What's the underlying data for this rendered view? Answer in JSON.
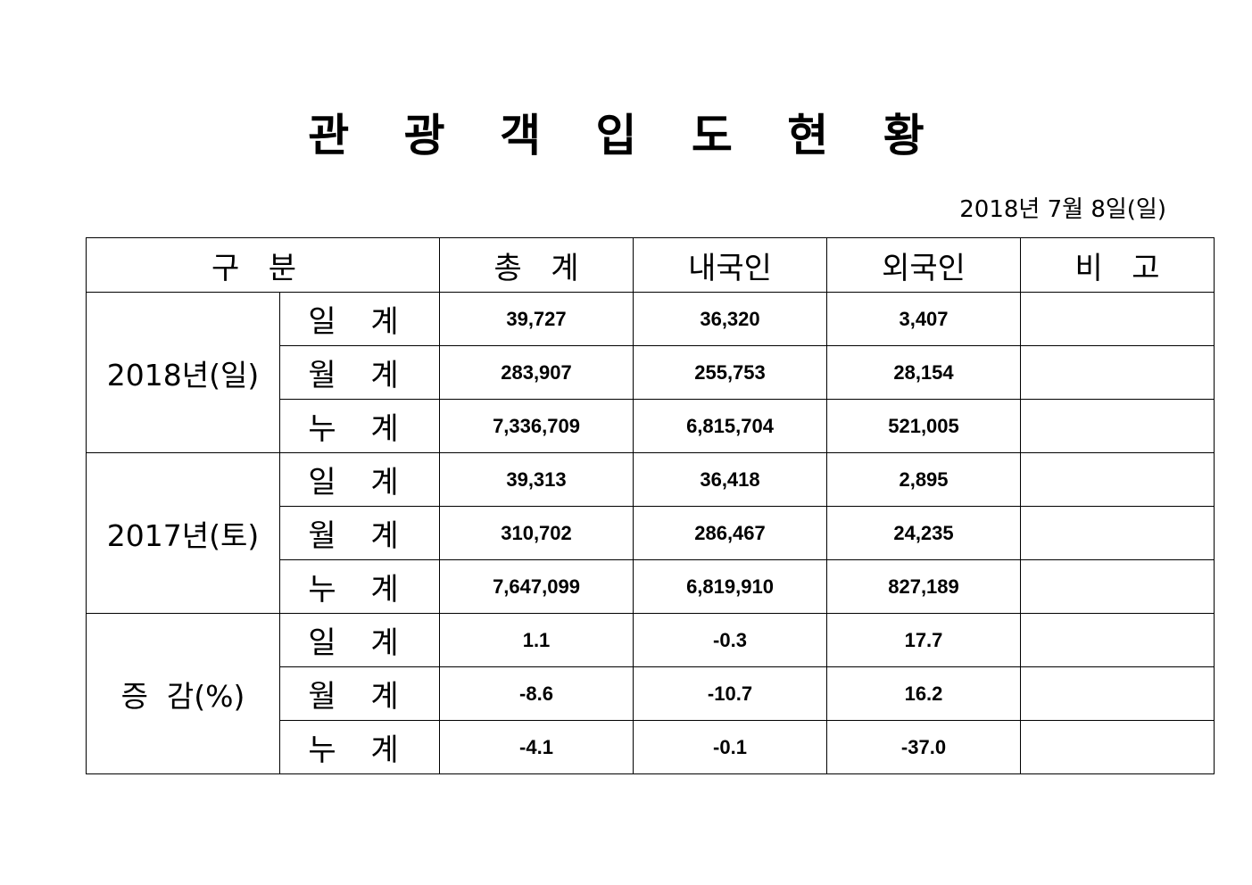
{
  "title": "관 광 객 입 도 현 황",
  "date": "2018년  7월  8일(일)",
  "headers": [
    "구   분",
    "총   계",
    "내국인",
    "외국인",
    "비   고"
  ],
  "groups": [
    {
      "label": "2018년(일)",
      "rows": [
        {
          "label": "일 계",
          "total": "39,727",
          "domestic": "36,320",
          "foreign": "3,407",
          "note": ""
        },
        {
          "label": "월 계",
          "total": "283,907",
          "domestic": "255,753",
          "foreign": "28,154",
          "note": ""
        },
        {
          "label": "누 계",
          "total": "7,336,709",
          "domestic": "6,815,704",
          "foreign": "521,005",
          "note": ""
        }
      ]
    },
    {
      "label": "2017년(토)",
      "rows": [
        {
          "label": "일 계",
          "total": "39,313",
          "domestic": "36,418",
          "foreign": "2,895",
          "note": ""
        },
        {
          "label": "월 계",
          "total": "310,702",
          "domestic": "286,467",
          "foreign": "24,235",
          "note": ""
        },
        {
          "label": "누 계",
          "total": "7,647,099",
          "domestic": "6,819,910",
          "foreign": "827,189",
          "note": ""
        }
      ]
    },
    {
      "label": "증  감(%)",
      "rows": [
        {
          "label": "일 계",
          "total": "1.1",
          "domestic": "-0.3",
          "foreign": "17.7",
          "note": ""
        },
        {
          "label": "월 계",
          "total": "-8.6",
          "domestic": "-10.7",
          "foreign": "16.2",
          "note": ""
        },
        {
          "label": "누 계",
          "total": "-4.1",
          "domestic": "-0.1",
          "foreign": "-37.0",
          "note": ""
        }
      ]
    }
  ]
}
